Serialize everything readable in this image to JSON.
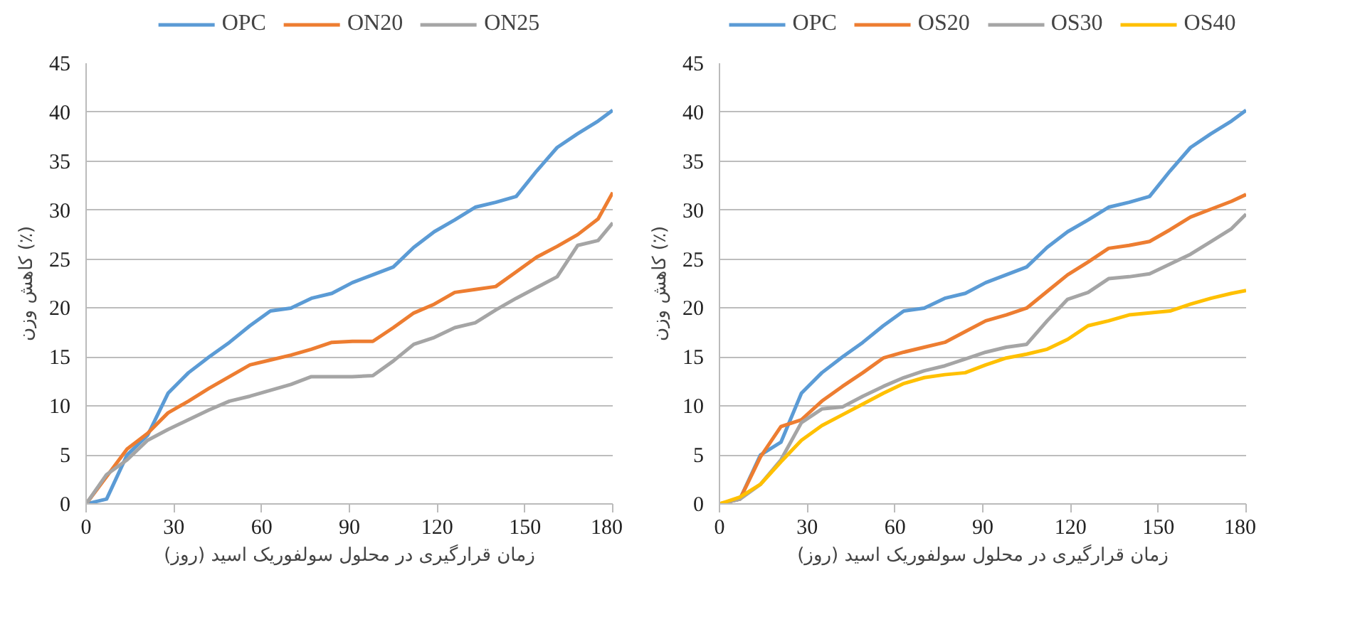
{
  "chart_data": [
    {
      "type": "line",
      "xlabel": "زمان قرارگیری در محلول سولفوریک اسید (روز)",
      "ylabel": "کاهش وزن (٪)",
      "x": [
        0,
        7,
        14,
        21,
        28,
        35,
        42,
        49,
        56,
        63,
        70,
        77,
        84,
        91,
        98,
        105,
        112,
        119,
        126,
        133,
        140,
        147,
        154,
        161,
        168,
        175,
        180
      ],
      "xlim": [
        0,
        180
      ],
      "xticks": [
        0,
        30,
        60,
        90,
        120,
        150,
        180
      ],
      "ylim": [
        0,
        45
      ],
      "yticks": [
        0,
        5,
        10,
        15,
        20,
        25,
        30,
        35,
        40,
        45
      ],
      "grid": "y",
      "legend": "top",
      "marker": "none",
      "line_style": "solid",
      "series": [
        {
          "name": "OPC",
          "color": "#5b9bd5",
          "values": [
            0,
            0.5,
            5,
            7,
            11.3,
            13.4,
            15,
            16.5,
            18.2,
            19.7,
            20,
            21,
            21.5,
            22.6,
            23.4,
            24.2,
            26.2,
            27.8,
            29,
            30.3,
            30.8,
            31.4,
            34,
            36.4,
            37.8,
            39.1,
            40.2
          ]
        },
        {
          "name": "ON20",
          "color": "#ed7d31",
          "values": [
            0,
            2.8,
            5.6,
            7.2,
            9.3,
            10.5,
            11.8,
            13,
            14.2,
            14.7,
            15.2,
            15.8,
            16.5,
            16.6,
            16.6,
            18,
            19.5,
            20.4,
            21.6,
            21.9,
            22.2,
            23.7,
            25.2,
            26.3,
            27.5,
            29.1,
            31.8
          ]
        },
        {
          "name": "ON25",
          "color": "#a5a5a5",
          "values": [
            0,
            3,
            4.5,
            6.5,
            7.6,
            8.6,
            9.6,
            10.5,
            11,
            11.6,
            12.2,
            13,
            13,
            13,
            13.1,
            14.6,
            16.3,
            17,
            18,
            18.5,
            19.8,
            21,
            22.1,
            23.2,
            26.4,
            26.9,
            28.7
          ]
        }
      ]
    },
    {
      "type": "line",
      "xlabel": "زمان قرارگیری در محلول سولفوریک اسید (روز)",
      "ylabel": "کاهش وزن (٪)",
      "x": [
        0,
        7,
        14,
        21,
        28,
        35,
        42,
        49,
        56,
        63,
        70,
        77,
        84,
        91,
        98,
        105,
        112,
        119,
        126,
        133,
        140,
        147,
        154,
        161,
        168,
        175,
        180
      ],
      "xlim": [
        0,
        180
      ],
      "xticks": [
        0,
        30,
        60,
        90,
        120,
        150,
        180
      ],
      "ylim": [
        0,
        45
      ],
      "yticks": [
        0,
        5,
        10,
        15,
        20,
        25,
        30,
        35,
        40,
        45
      ],
      "grid": "y",
      "legend": "top",
      "marker": "none",
      "line_style": "solid",
      "series": [
        {
          "name": "OPC",
          "color": "#5b9bd5",
          "values": [
            0,
            0.5,
            5,
            6.3,
            11.3,
            13.4,
            15,
            16.5,
            18.2,
            19.7,
            20,
            21,
            21.5,
            22.6,
            23.4,
            24.2,
            26.2,
            27.8,
            29,
            30.3,
            30.8,
            31.4,
            34,
            36.4,
            37.8,
            39.1,
            40.2
          ]
        },
        {
          "name": "OS20",
          "color": "#ed7d31",
          "values": [
            0,
            0.5,
            4.8,
            7.9,
            8.6,
            10.5,
            12,
            13.4,
            14.9,
            15.5,
            16,
            16.5,
            17.6,
            18.7,
            19.3,
            20,
            21.7,
            23.4,
            24.7,
            26.1,
            26.4,
            26.8,
            28,
            29.3,
            30.1,
            30.9,
            31.6
          ]
        },
        {
          "name": "OS30",
          "color": "#a5a5a5",
          "values": [
            0,
            0.5,
            2,
            4.5,
            8.3,
            9.7,
            9.9,
            11,
            12,
            12.9,
            13.6,
            14.1,
            14.8,
            15.5,
            16,
            16.3,
            18.7,
            20.9,
            21.6,
            23,
            23.2,
            23.5,
            24.5,
            25.5,
            26.8,
            28.1,
            29.6
          ]
        },
        {
          "name": "OS40",
          "color": "#ffc000",
          "values": [
            0,
            0.7,
            2,
            4.3,
            6.5,
            8,
            9.1,
            10.2,
            11.3,
            12.3,
            12.9,
            13.2,
            13.4,
            14.2,
            14.9,
            15.3,
            15.8,
            16.8,
            18.2,
            18.7,
            19.3,
            19.5,
            19.7,
            20.4,
            21,
            21.5,
            21.8
          ]
        }
      ]
    }
  ]
}
